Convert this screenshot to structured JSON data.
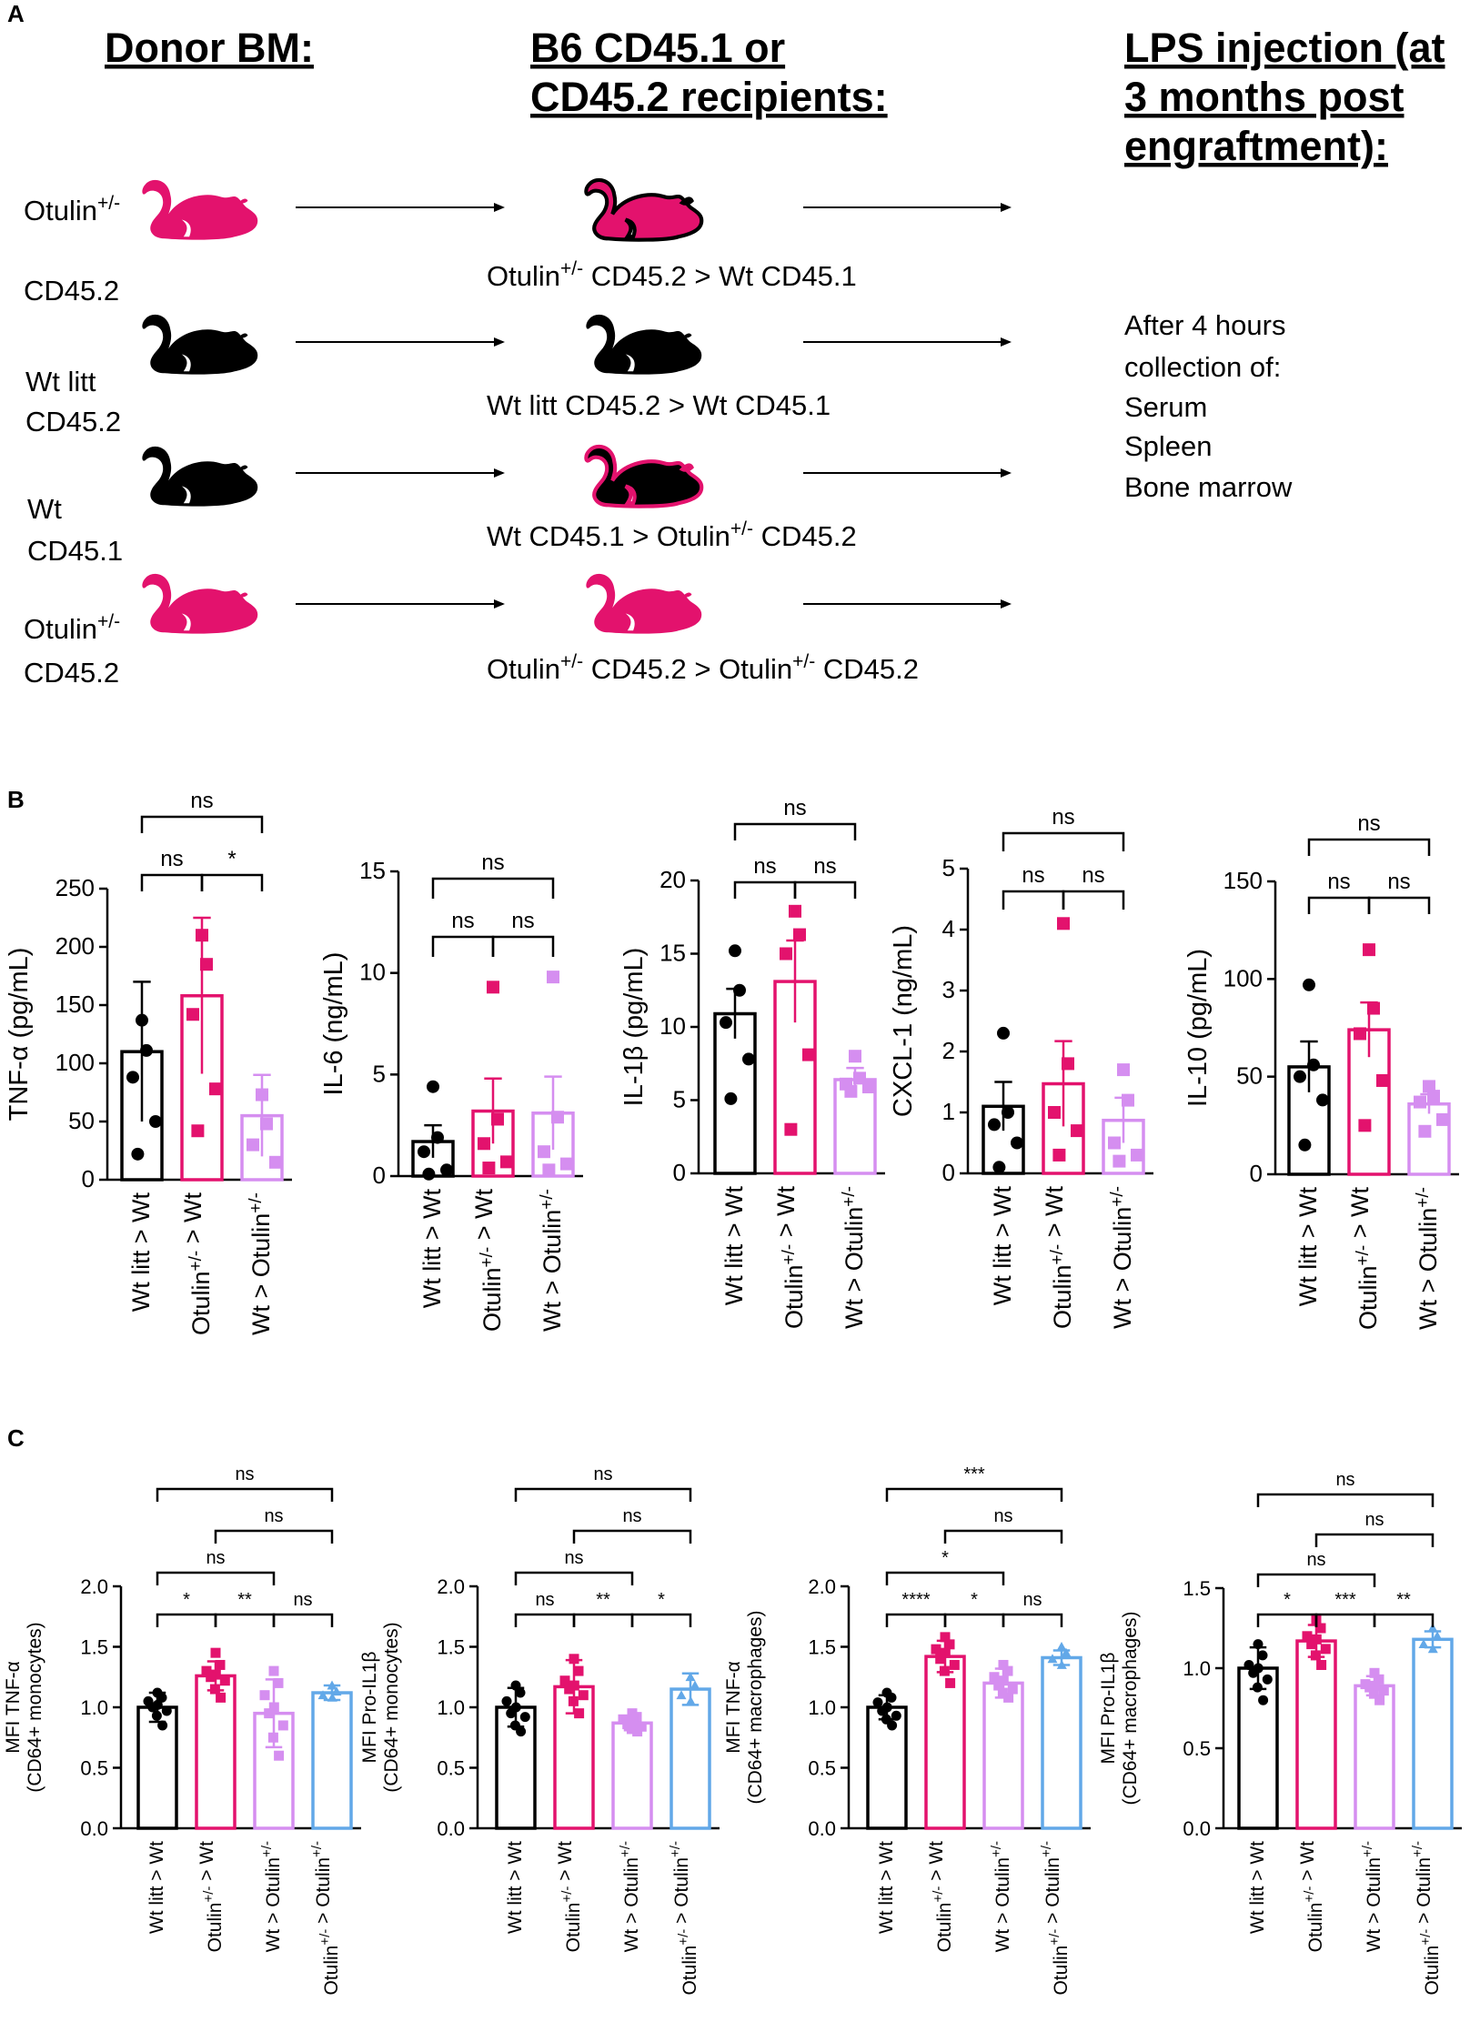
{
  "panel_letters": {
    "a": "A",
    "b": "B",
    "c": "C"
  },
  "colors": {
    "black": "#000000",
    "pink": "#e3126d",
    "lilac": "#d58ef0",
    "blue": "#62a8e8"
  },
  "panelA": {
    "headings": {
      "donor": "Donor BM:",
      "recipients_line1": "B6 CD45.1 or",
      "recipients_line2": "CD45.2 recipients:",
      "lps_line1": "LPS injection (at",
      "lps_line2": "3 months post",
      "lps_line3": "engraftment):"
    },
    "donors": [
      {
        "line1": "Otulin",
        "sup": "+/-",
        "line2": "CD45.2",
        "color": "#e3126d",
        "icon": "mouse-icon"
      },
      {
        "line1": "Wt litt",
        "sup": "",
        "line2": "CD45.2",
        "color": "#000000",
        "icon": "mouse-icon"
      },
      {
        "line1": "Wt",
        "sup": "",
        "line2": "CD45.1",
        "color": "#000000",
        "icon": "mouse-icon"
      },
      {
        "line1": "Otulin",
        "sup": "+/-",
        "line2": "CD45.2",
        "color": "#e3126d",
        "icon": "mouse-icon"
      }
    ],
    "transplants": [
      {
        "parts": [
          "Otulin",
          "+/-",
          " CD45.2 > Wt CD45.1"
        ]
      },
      {
        "parts": [
          "Wt litt CD45.2 > Wt CD45.1",
          "",
          ""
        ]
      },
      {
        "parts": [
          "Wt CD45.1 > Otulin",
          "+/-",
          " CD45.2"
        ]
      },
      {
        "parts": [
          "Otulin",
          "+/-",
          " CD45.2 > Otulin",
          "+/-",
          " CD45.2"
        ]
      }
    ],
    "collection": [
      "After 4 hours",
      "collection of:",
      "Serum",
      "Spleen",
      "Bone marrow"
    ]
  },
  "chart_data": [
    {
      "panel": "B",
      "type": "bar",
      "ylabel": "TNF-α (pg/mL)",
      "ylim": [
        0,
        250
      ],
      "yticks": [
        0,
        50,
        100,
        150,
        200,
        250
      ],
      "categories": [
        "Wt litt > Wt",
        "Otulin+/- > Wt",
        "Wt > Otulin+/-"
      ],
      "values": [
        110,
        158,
        55
      ],
      "errors": [
        60,
        67,
        35
      ],
      "points": [
        [
          137,
          111,
          88,
          50,
          22
        ],
        [
          210,
          185,
          142,
          78,
          42
        ],
        [
          73,
          48,
          30,
          15
        ]
      ],
      "comparisons": [
        {
          "from": 0,
          "to": 1,
          "label": "ns",
          "level": 1
        },
        {
          "from": 1,
          "to": 2,
          "label": "*",
          "level": 1
        },
        {
          "from": 0,
          "to": 2,
          "label": "ns",
          "level": 2
        }
      ]
    },
    {
      "panel": "B",
      "type": "bar",
      "ylabel": "IL-6 (ng/mL)",
      "ylim": [
        0,
        15
      ],
      "yticks": [
        0,
        5,
        10,
        15
      ],
      "categories": [
        "Wt litt > Wt",
        "Otulin+/- > Wt",
        "Wt > Otulin+/-"
      ],
      "values": [
        1.7,
        3.2,
        3.1
      ],
      "errors": [
        0.8,
        1.6,
        1.8
      ],
      "points": [
        [
          4.4,
          1.9,
          1.2,
          0.3,
          0.1
        ],
        [
          9.3,
          2.8,
          1.6,
          0.7,
          0.4
        ],
        [
          9.8,
          2.9,
          1.2,
          0.6,
          0.3
        ]
      ],
      "comparisons": [
        {
          "from": 0,
          "to": 1,
          "label": "ns",
          "level": 1
        },
        {
          "from": 1,
          "to": 2,
          "label": "ns",
          "level": 1
        },
        {
          "from": 0,
          "to": 2,
          "label": "ns",
          "level": 2
        }
      ]
    },
    {
      "panel": "B",
      "type": "bar",
      "ylabel": "IL-1β (pg/mL)",
      "ylim": [
        0,
        20
      ],
      "yticks": [
        0,
        5,
        10,
        15,
        20
      ],
      "categories": [
        "Wt litt > Wt",
        "Otulin+/- > Wt",
        "Wt > Otulin+/-"
      ],
      "values": [
        10.9,
        13.1,
        6.4
      ],
      "errors": [
        1.7,
        2.8,
        0.8
      ],
      "points": [
        [
          15.2,
          12.5,
          10.3,
          7.8,
          5.1
        ],
        [
          17.9,
          16.3,
          15.0,
          8.1,
          3.0
        ],
        [
          8.0,
          6.5,
          6.1,
          5.9,
          5.6
        ]
      ],
      "comparisons": [
        {
          "from": 0,
          "to": 1,
          "label": "ns",
          "level": 1
        },
        {
          "from": 1,
          "to": 2,
          "label": "ns",
          "level": 1
        },
        {
          "from": 0,
          "to": 2,
          "label": "ns",
          "level": 2
        }
      ]
    },
    {
      "panel": "B",
      "type": "bar",
      "ylabel": "CXCL-1 (ng/mL)",
      "ylim": [
        0,
        5
      ],
      "yticks": [
        0,
        1,
        2,
        3,
        4,
        5
      ],
      "categories": [
        "Wt litt > Wt",
        "Otulin+/- > Wt",
        "Wt > Otulin+/-"
      ],
      "values": [
        1.1,
        1.47,
        0.87
      ],
      "errors": [
        0.4,
        0.7,
        0.37
      ],
      "points": [
        [
          2.3,
          1.0,
          0.8,
          0.5,
          0.1
        ],
        [
          4.1,
          1.8,
          1.0,
          0.7,
          0.3
        ],
        [
          1.7,
          1.2,
          0.5,
          0.3,
          0.2
        ]
      ],
      "comparisons": [
        {
          "from": 0,
          "to": 1,
          "label": "ns",
          "level": 1
        },
        {
          "from": 1,
          "to": 2,
          "label": "ns",
          "level": 1
        },
        {
          "from": 0,
          "to": 2,
          "label": "ns",
          "level": 2
        }
      ]
    },
    {
      "panel": "B",
      "type": "bar",
      "ylabel": "IL-10 (pg/mL)",
      "ylim": [
        0,
        150
      ],
      "yticks": [
        0,
        50,
        100,
        150
      ],
      "categories": [
        "Wt litt > Wt",
        "Otulin+/- > Wt",
        "Wt > Otulin+/-"
      ],
      "values": [
        55,
        74,
        36
      ],
      "errors": [
        13,
        14,
        5
      ],
      "points": [
        [
          97,
          56,
          50,
          38,
          15
        ],
        [
          115,
          85,
          72,
          48,
          25
        ],
        [
          45,
          40,
          37,
          28,
          22
        ]
      ],
      "comparisons": [
        {
          "from": 0,
          "to": 1,
          "label": "ns",
          "level": 1
        },
        {
          "from": 1,
          "to": 2,
          "label": "ns",
          "level": 1
        },
        {
          "from": 0,
          "to": 2,
          "label": "ns",
          "level": 2
        }
      ]
    },
    {
      "panel": "C",
      "type": "bar",
      "ylabel1": "MFI TNF-α",
      "ylabel2": "(CD64+ monocytes)",
      "ylim": [
        0,
        2.0
      ],
      "yticks": [
        0.0,
        0.5,
        1.0,
        1.5,
        2.0
      ],
      "categories": [
        "Wt litt > Wt",
        "Otulin+/- > Wt",
        "Wt > Otulin+/-",
        "Otulin+/- > Otulin+/-"
      ],
      "values": [
        1.0,
        1.26,
        0.95,
        1.12
      ],
      "errors": [
        0.12,
        0.12,
        0.28,
        0.06
      ],
      "points": [
        [
          1.12,
          1.08,
          1.05,
          1.02,
          1.0,
          0.97,
          0.93,
          0.85
        ],
        [
          1.45,
          1.35,
          1.3,
          1.27,
          1.25,
          1.22,
          1.15,
          1.08
        ],
        [
          1.3,
          1.2,
          1.1,
          1.0,
          0.95,
          0.85,
          0.75,
          0.6
        ],
        [
          1.18,
          1.13,
          1.1,
          1.08
        ]
      ],
      "comparisons": [
        {
          "from": 0,
          "to": 1,
          "label": "*",
          "level": 1
        },
        {
          "from": 1,
          "to": 2,
          "label": "**",
          "level": 1
        },
        {
          "from": 2,
          "to": 3,
          "label": "ns",
          "level": 1
        },
        {
          "from": 0,
          "to": 2,
          "label": "ns",
          "level": 2
        },
        {
          "from": 1,
          "to": 3,
          "label": "ns",
          "level": 3
        },
        {
          "from": 0,
          "to": 3,
          "label": "ns",
          "level": 4
        }
      ]
    },
    {
      "panel": "C",
      "type": "bar",
      "ylabel1": "MFI Pro-IL1β",
      "ylabel2": "(CD64+ monocytes)",
      "ylim": [
        0,
        2.0
      ],
      "yticks": [
        0.0,
        0.5,
        1.0,
        1.5,
        2.0
      ],
      "categories": [
        "Wt litt > Wt",
        "Otulin+/- > Wt",
        "Wt > Otulin+/-",
        "Otulin+/- > Otulin+/-"
      ],
      "values": [
        1.0,
        1.17,
        0.87,
        1.15
      ],
      "errors": [
        0.16,
        0.22,
        0.06,
        0.13
      ],
      "points": [
        [
          1.18,
          1.12,
          1.05,
          1.0,
          0.95,
          0.92,
          0.85,
          0.8
        ],
        [
          1.4,
          1.3,
          1.22,
          1.18,
          1.15,
          1.1,
          1.05,
          0.95
        ],
        [
          0.95,
          0.92,
          0.9,
          0.88,
          0.86,
          0.84,
          0.82,
          0.8
        ],
        [
          1.25,
          1.18,
          1.1,
          1.05
        ]
      ],
      "comparisons": [
        {
          "from": 0,
          "to": 1,
          "label": "ns",
          "level": 1
        },
        {
          "from": 1,
          "to": 2,
          "label": "**",
          "level": 1
        },
        {
          "from": 2,
          "to": 3,
          "label": "*",
          "level": 1
        },
        {
          "from": 0,
          "to": 2,
          "label": "ns",
          "level": 2
        },
        {
          "from": 1,
          "to": 3,
          "label": "ns",
          "level": 3
        },
        {
          "from": 0,
          "to": 3,
          "label": "ns",
          "level": 4
        }
      ]
    },
    {
      "panel": "C",
      "type": "bar",
      "ylabel1": "MFI TNF-α",
      "ylabel2": "(CD64+ macrophages)",
      "ylim": [
        0,
        2.0
      ],
      "yticks": [
        0.0,
        0.5,
        1.0,
        1.5,
        2.0
      ],
      "categories": [
        "Wt litt > Wt",
        "Otulin+/- > Wt",
        "Wt > Otulin+/-",
        "Otulin+/- > Otulin+/-"
      ],
      "values": [
        1.0,
        1.42,
        1.2,
        1.41
      ],
      "errors": [
        0.1,
        0.13,
        0.12,
        0.06
      ],
      "points": [
        [
          1.12,
          1.08,
          1.04,
          1.0,
          0.97,
          0.93,
          0.9,
          0.85
        ],
        [
          1.58,
          1.52,
          1.48,
          1.45,
          1.4,
          1.35,
          1.3,
          1.2
        ],
        [
          1.35,
          1.3,
          1.25,
          1.22,
          1.18,
          1.15,
          1.12,
          1.08
        ],
        [
          1.5,
          1.45,
          1.4,
          1.35
        ]
      ],
      "comparisons": [
        {
          "from": 0,
          "to": 1,
          "label": "****",
          "level": 1
        },
        {
          "from": 1,
          "to": 2,
          "label": "*",
          "level": 1
        },
        {
          "from": 2,
          "to": 3,
          "label": "ns",
          "level": 1
        },
        {
          "from": 0,
          "to": 2,
          "label": "*",
          "level": 2
        },
        {
          "from": 1,
          "to": 3,
          "label": "ns",
          "level": 3
        },
        {
          "from": 0,
          "to": 3,
          "label": "***",
          "level": 4
        }
      ]
    },
    {
      "panel": "C",
      "type": "bar",
      "ylabel1": "MFI Pro-IL1β",
      "ylabel2": "(CD64+ macrophages)",
      "ylim": [
        0,
        1.5
      ],
      "yticks": [
        0.0,
        0.5,
        1.0,
        1.5
      ],
      "categories": [
        "Wt litt > Wt",
        "Otulin+/- > Wt",
        "Wt > Otulin+/-",
        "Otulin+/- > Otulin+/-"
      ],
      "values": [
        1.0,
        1.17,
        0.89,
        1.18
      ],
      "errors": [
        0.13,
        0.1,
        0.06,
        0.05
      ],
      "points": [
        [
          1.15,
          1.08,
          1.02,
          1.0,
          0.97,
          0.93,
          0.88,
          0.8
        ],
        [
          1.3,
          1.25,
          1.2,
          1.18,
          1.15,
          1.12,
          1.08,
          1.02
        ],
        [
          0.97,
          0.93,
          0.9,
          0.89,
          0.88,
          0.86,
          0.84,
          0.8
        ],
        [
          1.25,
          1.2,
          1.15,
          1.12
        ]
      ],
      "comparisons": [
        {
          "from": 0,
          "to": 1,
          "label": "*",
          "level": 1
        },
        {
          "from": 1,
          "to": 2,
          "label": "***",
          "level": 1
        },
        {
          "from": 2,
          "to": 3,
          "label": "**",
          "level": 1
        },
        {
          "from": 0,
          "to": 2,
          "label": "ns",
          "level": 2
        },
        {
          "from": 1,
          "to": 3,
          "label": "ns",
          "level": 3
        },
        {
          "from": 0,
          "to": 3,
          "label": "ns",
          "level": 4
        }
      ]
    }
  ]
}
